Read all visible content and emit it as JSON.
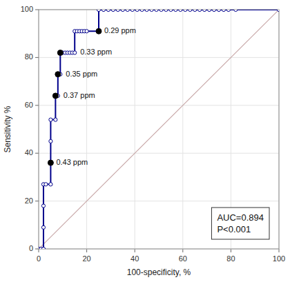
{
  "chart_data": {
    "type": "line",
    "xlabel": "100-specificity, %",
    "ylabel": "Sensitivity %",
    "xlim": [
      0,
      100
    ],
    "ylim": [
      0,
      100
    ],
    "xticks": [
      0,
      20,
      40,
      60,
      80,
      100
    ],
    "yticks": [
      0,
      20,
      40,
      60,
      80,
      100
    ],
    "grid": true,
    "series": [
      {
        "color": "#00008B",
        "marker": "circle",
        "x": [
          0,
          1,
          2,
          2,
          2,
          2,
          3,
          5,
          5,
          5,
          5,
          7,
          7,
          8,
          8,
          9,
          9,
          10,
          11,
          12,
          13,
          14,
          15,
          15,
          16,
          17,
          18,
          19,
          20,
          25,
          25,
          27,
          29,
          31,
          33,
          35,
          37,
          39,
          41,
          43,
          45,
          47,
          49,
          51,
          53,
          55,
          57,
          59,
          61,
          63,
          65,
          67,
          69,
          71,
          73,
          75,
          77,
          79,
          82,
          100
        ],
        "values": [
          0,
          0,
          0,
          9,
          18,
          27,
          27,
          27,
          36,
          45,
          54,
          54,
          64,
          64,
          73,
          73,
          82,
          82,
          82,
          82,
          82,
          82,
          82,
          91,
          91,
          91,
          91,
          91,
          91,
          91,
          100,
          100,
          100,
          100,
          100,
          100,
          100,
          100,
          100,
          100,
          100,
          100,
          100,
          100,
          100,
          100,
          100,
          100,
          100,
          100,
          100,
          100,
          100,
          100,
          100,
          100,
          100,
          100,
          100,
          100
        ]
      },
      {
        "color": "#C8A8A8",
        "x": [
          0,
          100
        ],
        "values": [
          0,
          100
        ]
      }
    ],
    "annotations": [
      {
        "text": "0.43 ppm",
        "x": 5,
        "y": 36
      },
      {
        "text": "0.33 ppm",
        "x": 9,
        "y": 82
      },
      {
        "text": "0.35 ppm",
        "x": 8,
        "y": 73
      },
      {
        "text": "0.37 ppm",
        "x": 7,
        "y": 64
      },
      {
        "text": "0.29 ppm",
        "x": 25,
        "y": 91
      }
    ],
    "box_text": [
      "AUC=0.894",
      "P<0.001"
    ]
  }
}
